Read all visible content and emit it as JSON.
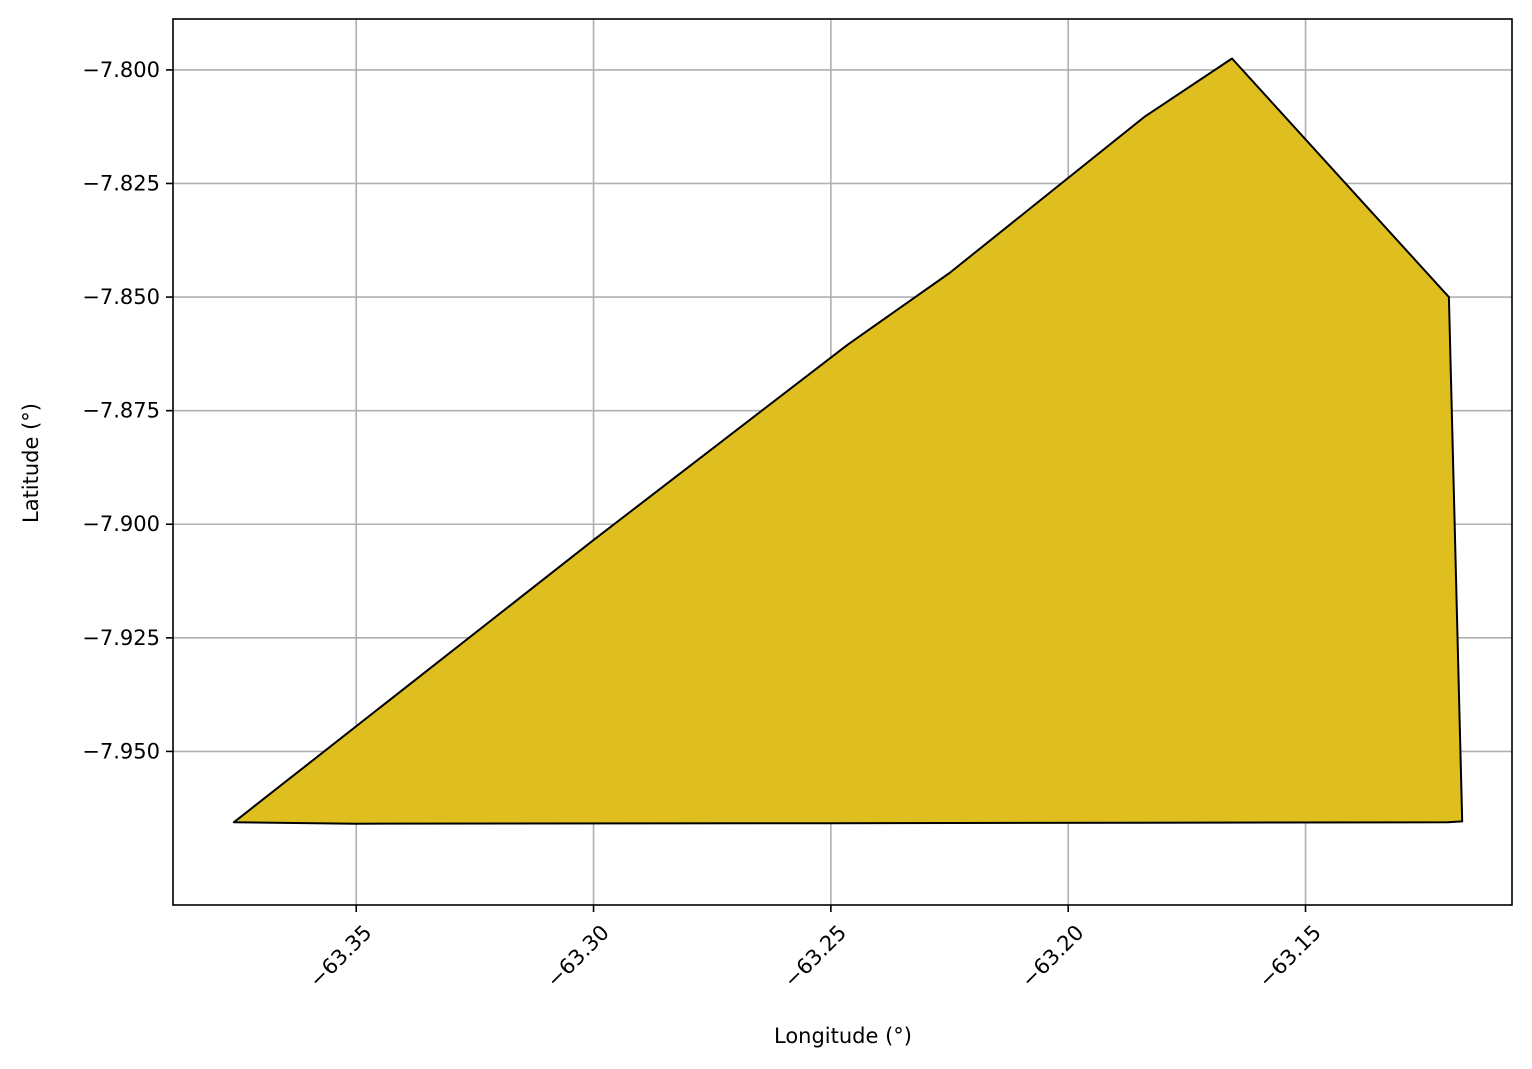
{
  "chart_data": {
    "type": "area",
    "title": "",
    "xlabel": "Longitude (°)",
    "ylabel": "Latitude (°)",
    "xlim": [
      -63.3886,
      -63.1065
    ],
    "ylim": [
      -7.9838,
      -7.7888
    ],
    "x_ticks": [
      {
        "value": -63.35,
        "label": "−63.35"
      },
      {
        "value": -63.3,
        "label": "−63.30"
      },
      {
        "value": -63.25,
        "label": "−63.25"
      },
      {
        "value": -63.2,
        "label": "−63.20"
      },
      {
        "value": -63.15,
        "label": "−63.15"
      }
    ],
    "y_ticks": [
      {
        "value": -7.8,
        "label": "−7.800"
      },
      {
        "value": -7.825,
        "label": "−7.825"
      },
      {
        "value": -7.85,
        "label": "−7.850"
      },
      {
        "value": -7.875,
        "label": "−7.875"
      },
      {
        "value": -7.9,
        "label": "−7.900"
      },
      {
        "value": -7.925,
        "label": "−7.925"
      },
      {
        "value": -7.95,
        "label": "−7.950"
      }
    ],
    "grid": true,
    "polygon": {
      "fill_color": "#DFBE1F",
      "edge_color": "#000000",
      "points": [
        {
          "x": -63.3758,
          "y": -7.9656
        },
        {
          "x": -63.35,
          "y": -7.9659
        },
        {
          "x": -63.25,
          "y": -7.9658
        },
        {
          "x": -63.12,
          "y": -7.9656
        },
        {
          "x": -63.117,
          "y": -7.9654
        },
        {
          "x": -63.1198,
          "y": -7.85
        },
        {
          "x": -63.1655,
          "y": -7.7975
        },
        {
          "x": -63.184,
          "y": -7.8104
        },
        {
          "x": -63.225,
          "y": -7.8447
        },
        {
          "x": -63.2465,
          "y": -7.8605
        },
        {
          "x": -63.3,
          "y": -7.9035
        },
        {
          "x": -63.3758,
          "y": -7.9656
        }
      ]
    }
  }
}
